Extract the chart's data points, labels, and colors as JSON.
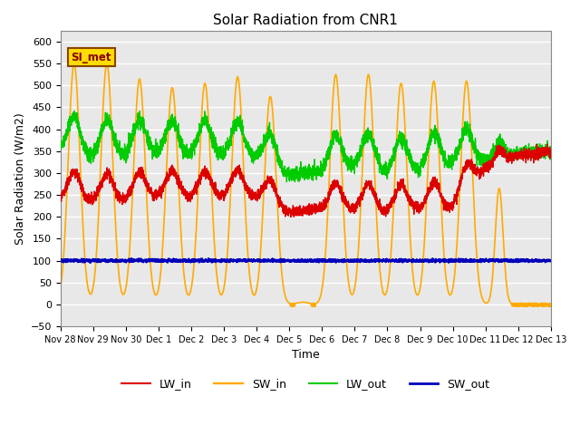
{
  "title": "Solar Radiation from CNR1",
  "xlabel": "Time",
  "ylabel": "Solar Radiation (W/m2)",
  "ylim": [
    -50,
    625
  ],
  "annotation_label": "SI_met",
  "annotation_bg": "#ffdd00",
  "annotation_border": "#884400",
  "annotation_text_color": "#880000",
  "line_colors": {
    "LW_in": "#dd0000",
    "SW_in": "#ffaa00",
    "LW_out": "#00cc00",
    "SW_out": "#0000bb"
  },
  "line_widths": {
    "LW_in": 1.0,
    "SW_in": 1.2,
    "LW_out": 1.0,
    "SW_out": 1.5
  },
  "fig_bg": "#ffffff",
  "axes_bg": "#e8e8e8",
  "grid_color": "#ffffff",
  "x_tick_labels": [
    "Nov 28",
    "Nov 29",
    "Nov 30",
    "Dec 1",
    "Dec 2",
    "Dec 3",
    "Dec 4",
    "Dec 5",
    "Dec 6",
    "Dec 7",
    "Dec 8",
    "Dec 9",
    "Dec 10",
    "Dec 11",
    "Dec 12",
    "Dec 13"
  ],
  "n_days": 15,
  "pts_per_day": 288,
  "sw_peaks": [
    550,
    10,
    550,
    10,
    515,
    10,
    495,
    10,
    505,
    10,
    520,
    10,
    475,
    10,
    5,
    10,
    525,
    10,
    525,
    10,
    505,
    10,
    510,
    10,
    510,
    10,
    265,
    10,
    0
  ],
  "sw_peak_times": [
    0.42,
    0.92,
    1.42,
    1.92,
    2.42,
    2.92,
    3.42,
    3.92,
    4.42,
    4.92,
    5.42,
    5.92,
    6.42,
    6.92,
    7.42,
    7.92,
    8.42,
    8.92,
    9.42,
    9.92,
    10.42,
    10.92,
    11.42,
    11.92,
    12.42,
    12.92,
    13.42,
    13.92,
    14.42
  ],
  "sw_widths": [
    0.18,
    0.0,
    0.18,
    0.0,
    0.18,
    0.0,
    0.18,
    0.0,
    0.18,
    0.0,
    0.18,
    0.0,
    0.18,
    0.0,
    0.18,
    0.0,
    0.18,
    0.0,
    0.18,
    0.0,
    0.18,
    0.0,
    0.18,
    0.0,
    0.18,
    0.0,
    0.12,
    0.0,
    0.0
  ]
}
